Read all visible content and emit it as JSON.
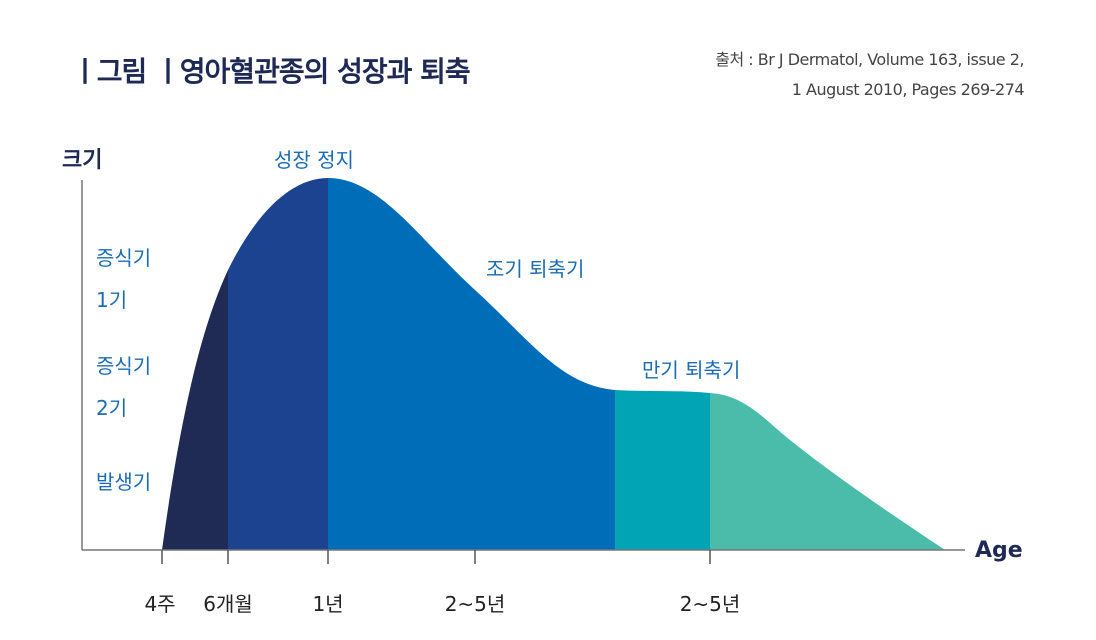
{
  "title": "ㅣ그림 ㅣ영아혈관종의 성장과 퇴축",
  "source": {
    "line1": "출처 : Br J Dermatol, Volume 163, issue 2,",
    "line2": "1 August 2010, Pages 269-274"
  },
  "axes": {
    "y_label": "크기",
    "x_label": "Age"
  },
  "phase_labels": {
    "proliferative1": [
      "증식기",
      "1기"
    ],
    "proliferative2": [
      "증식기",
      "2기"
    ],
    "onset": "발생기"
  },
  "stage_labels": {
    "plateau": "성장 정지",
    "early_involution": "조기 퇴축기",
    "late_involution": "만기 퇴축기"
  },
  "ticks": [
    "4주",
    "6개월",
    "1년",
    "2~5년",
    "2~5년"
  ],
  "colors": {
    "band1": "#1f2a55",
    "band2": "#1b438f",
    "band3": "#006db8",
    "band4": "#00a4b4",
    "band5": "#4bbcaa",
    "title": "#1e2a55",
    "label": "#1a6cb5"
  }
}
